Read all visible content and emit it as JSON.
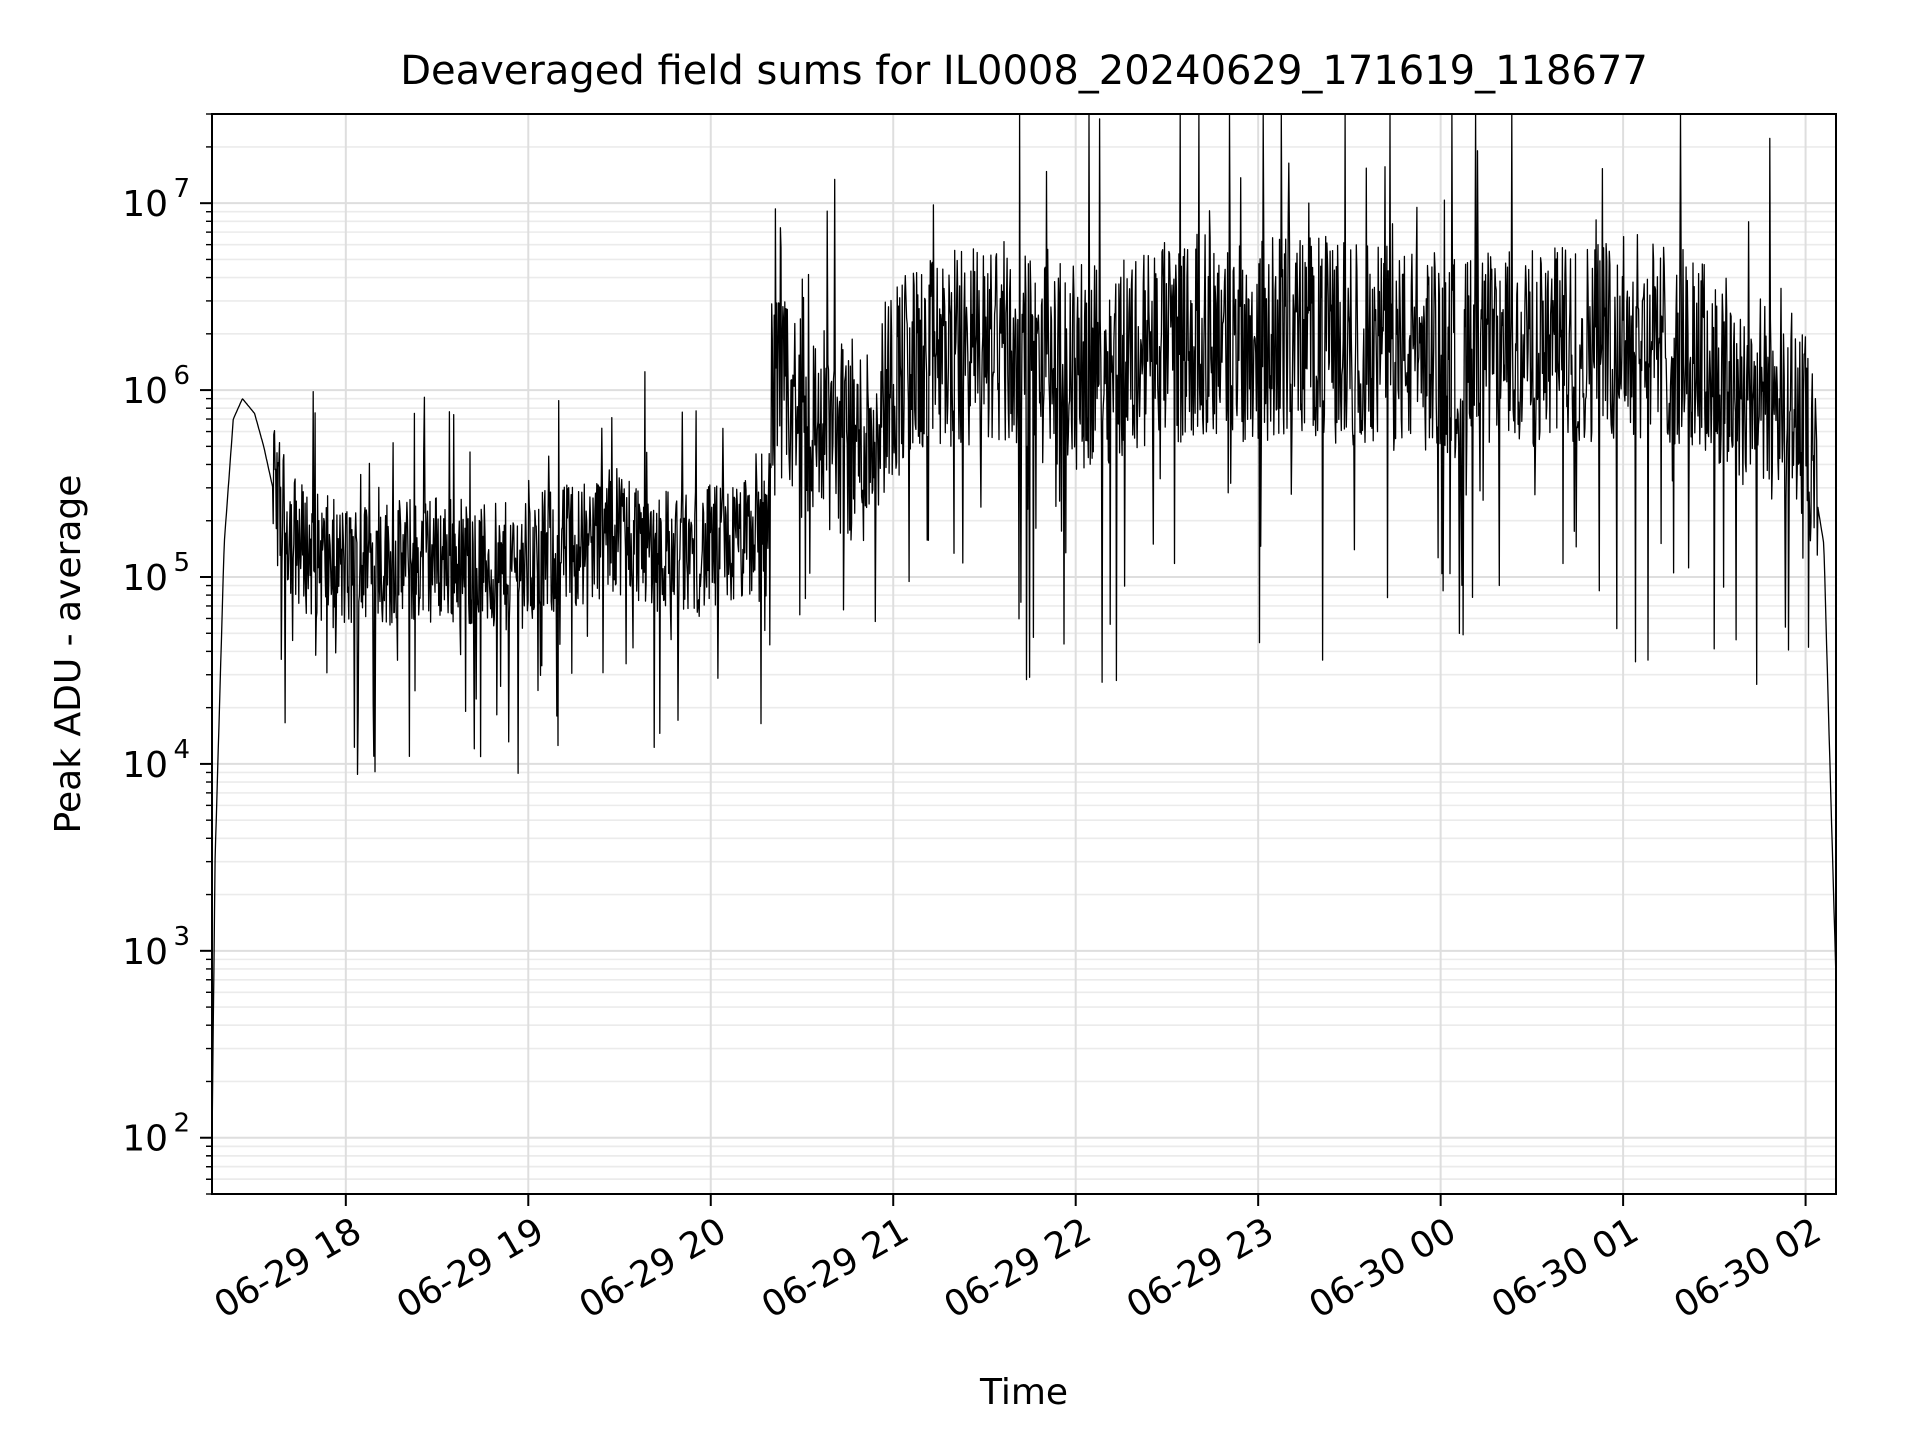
{
  "chart_data": {
    "type": "line",
    "title": "Deaveraged field sums for IL0008_20240629_171619_118677",
    "xlabel": "Time",
    "ylabel": "Peak ADU - average",
    "xlim": [
      "2024-06-29 17:16",
      "2024-06-30 02:10"
    ],
    "ylim": [
      50,
      30000000
    ],
    "yscale": "log",
    "grid": "both (major and minor)",
    "x_tick_labels": [
      "06-29 18",
      "06-29 19",
      "06-29 20",
      "06-29 21",
      "06-29 22",
      "06-29 23",
      "06-30 00",
      "06-30 01",
      "06-30 02"
    ],
    "y_ticks": [
      100,
      1000,
      10000,
      100000,
      1000000,
      10000000
    ],
    "y_tick_labels": [
      {
        "base": "10",
        "exp": "2"
      },
      {
        "base": "10",
        "exp": "3"
      },
      {
        "base": "10",
        "exp": "4"
      },
      {
        "base": "10",
        "exp": "5"
      },
      {
        "base": "10",
        "exp": "6"
      },
      {
        "base": "10",
        "exp": "7"
      }
    ],
    "line_color": "#000000",
    "series": [
      {
        "x": [
          "06-29 17:16",
          "06-29 17:17",
          "06-29 17:20",
          "06-29 17:23",
          "06-29 17:26",
          "06-29 17:30",
          "06-29 17:33",
          "06-29 17:36",
          "06-29 17:40",
          "06-29 17:45",
          "06-29 17:50",
          "06-29 17:55",
          "06-29 18:00",
          "06-29 18:10",
          "06-29 18:20",
          "06-29 18:30",
          "06-29 18:40",
          "06-29 18:50",
          "06-29 19:00",
          "06-29 19:10",
          "06-29 19:20",
          "06-29 19:30",
          "06-29 19:40",
          "06-29 19:50",
          "06-29 20:00",
          "06-29 20:10",
          "06-29 20:18",
          "06-29 20:20",
          "06-29 20:30",
          "06-29 20:40",
          "06-29 20:50",
          "06-29 21:00",
          "06-29 21:15",
          "06-29 21:30",
          "06-29 21:45",
          "06-29 22:00",
          "06-29 22:15",
          "06-29 22:30",
          "06-29 22:45",
          "06-29 23:00",
          "06-29 23:10",
          "06-29 23:20",
          "06-29 23:40",
          "06-29 23:55",
          "06-30 00:05",
          "06-30 00:20",
          "06-30 00:40",
          "06-30 01:00",
          "06-30 01:15",
          "06-30 01:30",
          "06-30 01:45",
          "06-30 01:55",
          "06-30 02:00",
          "06-30 02:03",
          "06-30 02:06",
          "06-30 02:08",
          "06-30 02:10"
        ],
        "y": [
          90,
          3000,
          150000,
          700000,
          900000,
          750000,
          500000,
          300000,
          200000,
          150000,
          130000,
          120000,
          110000,
          120000,
          120000,
          130000,
          120000,
          110000,
          120000,
          140000,
          160000,
          180000,
          150000,
          130000,
          140000,
          150000,
          160000,
          1000000,
          700000,
          600000,
          500000,
          1200000,
          1500000,
          1800000,
          1500000,
          1300000,
          1500000,
          1800000,
          2000000,
          1800000,
          2000000,
          1900000,
          1700000,
          1600000,
          1500000,
          1600000,
          1700000,
          2000000,
          1800000,
          1300000,
          900000,
          800000,
          600000,
          300000,
          150000,
          10000,
          700
        ]
      }
    ]
  }
}
